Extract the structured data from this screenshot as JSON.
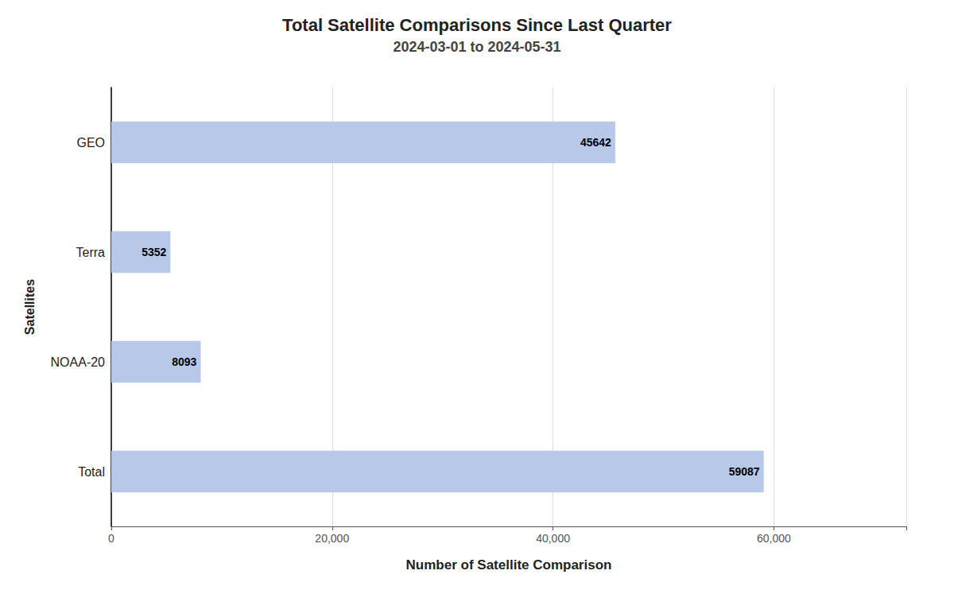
{
  "chart_data": {
    "type": "bar",
    "orientation": "horizontal",
    "title": "Total Satellite Comparisons Since Last Quarter",
    "subtitle": "2024-03-01 to 2024-05-31",
    "categories": [
      "GEO",
      "Terra",
      "NOAA-20",
      "Total"
    ],
    "values": [
      45642,
      5352,
      8093,
      59087
    ],
    "color": "#b8c8e8",
    "xlabel": "Number of Satellite Comparison",
    "ylabel": "Satellites",
    "xlim": [
      0,
      72000
    ],
    "xticks": [
      0,
      {
        "value": 20000,
        "label": "20,000"
      },
      {
        "value": 40000,
        "label": "40,000"
      },
      {
        "value": 60000,
        "label": "60,000"
      }
    ],
    "grid": true,
    "data_labels": true
  }
}
